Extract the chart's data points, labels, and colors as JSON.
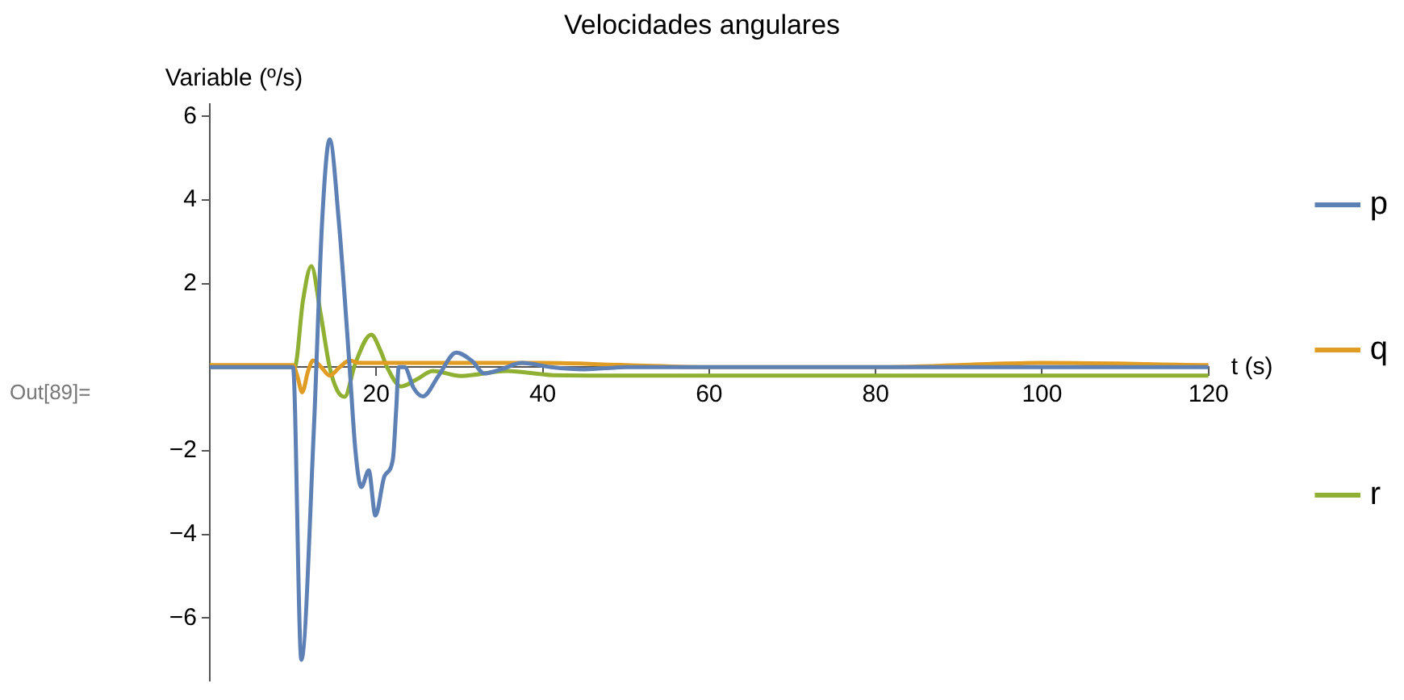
{
  "chart_data": {
    "type": "line",
    "title": "Velocidades angulares",
    "xlabel": "t (s)",
    "ylabel": "Variable (º/s)",
    "annotations": [
      "Out[89]="
    ],
    "xlim": [
      0,
      120
    ],
    "ylim": [
      -7.5,
      6.3
    ],
    "xticks": [
      20,
      40,
      60,
      80,
      100,
      120
    ],
    "yticks": [
      -6,
      -4,
      -2,
      2,
      4,
      6
    ],
    "grid": false,
    "legend": "right",
    "marker": "none",
    "line_style": "solid",
    "series": [
      {
        "name": "p",
        "color": "#5e81b5",
        "x": [
          0,
          10,
          11,
          12.5,
          13.5,
          14.4,
          15.5,
          16.8,
          17.5,
          18.2,
          19.1,
          19.9,
          21,
          22,
          22.4,
          22.7,
          23.4,
          24.5,
          25.6,
          27.5,
          29.6,
          31.5,
          33,
          35,
          37.5,
          41,
          45,
          50,
          60,
          80,
          100,
          120
        ],
        "values": [
          0,
          0,
          -7.0,
          -1.5,
          3.5,
          5.45,
          3.5,
          0,
          -2,
          -2.87,
          -2.47,
          -3.55,
          -2.6,
          -2.2,
          -1,
          0,
          0,
          -0.5,
          -0.7,
          -0.2,
          0.35,
          0.15,
          -0.15,
          -0.05,
          0.1,
          0,
          -0.05,
          0,
          0,
          0,
          0,
          0
        ]
      },
      {
        "name": "q",
        "color": "#e19c24",
        "x": [
          0,
          10,
          10.5,
          11.1,
          11.8,
          12.4,
          13.4,
          14.4,
          15.6,
          16.8,
          18,
          25,
          40,
          50,
          60,
          80,
          100,
          120
        ],
        "values": [
          0.05,
          0.05,
          -0.2,
          -0.6,
          -0.1,
          0.16,
          0,
          -0.2,
          0,
          0.16,
          0.1,
          0.1,
          0.1,
          0.05,
          0,
          0,
          0.1,
          0.05
        ]
      },
      {
        "name": "r",
        "color": "#8fb032",
        "x": [
          0,
          10.2,
          11.2,
          12.2,
          13.3,
          14.4,
          15.3,
          16.2,
          17.5,
          19.4,
          20.5,
          21.3,
          23,
          24.8,
          26.8,
          30.2,
          35.7,
          41.2,
          50,
          80,
          120
        ],
        "values": [
          0,
          0,
          1.6,
          2.42,
          1.3,
          0,
          -0.55,
          -0.71,
          0.1,
          0.78,
          0.4,
          0,
          -0.46,
          -0.3,
          -0.09,
          -0.21,
          -0.09,
          -0.19,
          -0.2,
          -0.2,
          -0.2
        ]
      }
    ]
  }
}
